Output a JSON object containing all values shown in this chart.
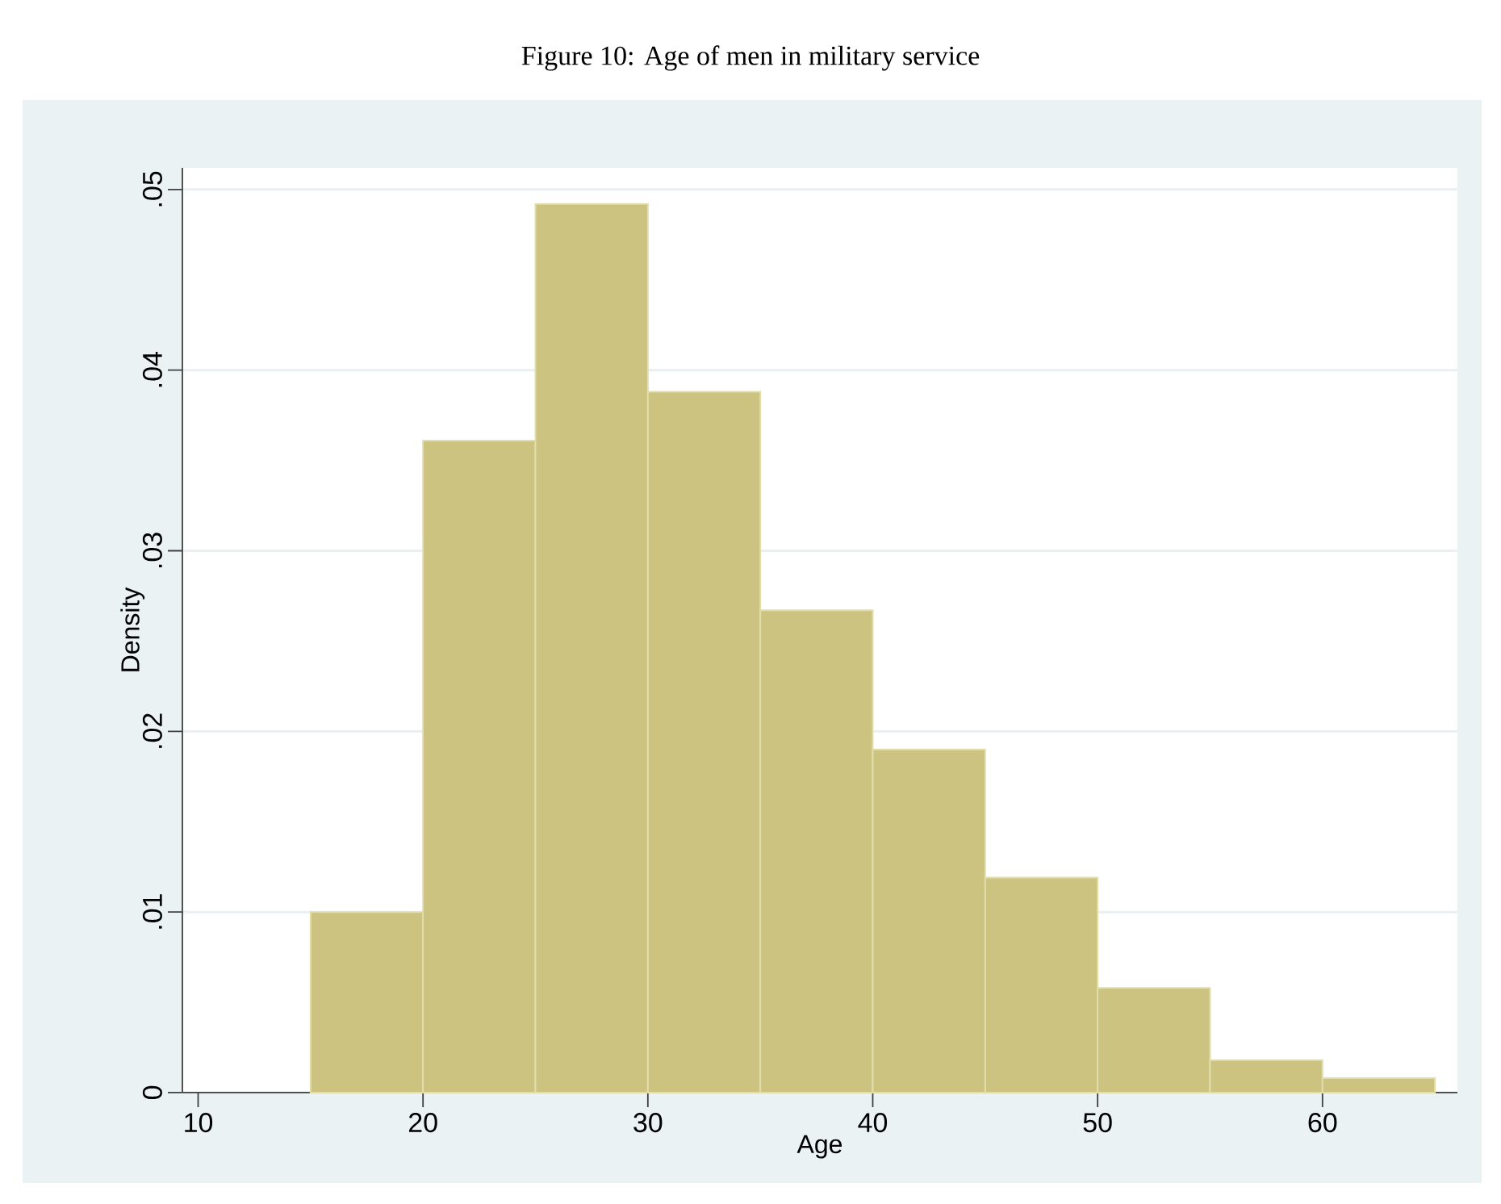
{
  "chart_data": {
    "type": "histogram",
    "title": "Figure 10: Age of men in military service",
    "xlabel": "Age",
    "ylabel": "Density",
    "bins": [
      15,
      20,
      25,
      30,
      35,
      40,
      45,
      50,
      55,
      60,
      65
    ],
    "values": [
      0.01,
      0.0361,
      0.0492,
      0.0388,
      0.0267,
      0.019,
      0.0119,
      0.0058,
      0.0018,
      0.0008
    ],
    "color": "#cbc37f",
    "xlim": [
      9.3,
      66
    ],
    "xticks": [
      10,
      20,
      30,
      40,
      50,
      60
    ],
    "ylim": [
      0,
      0.0512
    ],
    "yticks": [
      0,
      {
        "value": 0.01,
        "label": ".01"
      },
      {
        "value": 0.02,
        "label": ".02"
      },
      {
        "value": 0.03,
        "label": ".03"
      },
      {
        "value": 0.04,
        "label": ".04"
      },
      {
        "value": 0.05,
        "label": ".05"
      }
    ],
    "grid": "y"
  }
}
